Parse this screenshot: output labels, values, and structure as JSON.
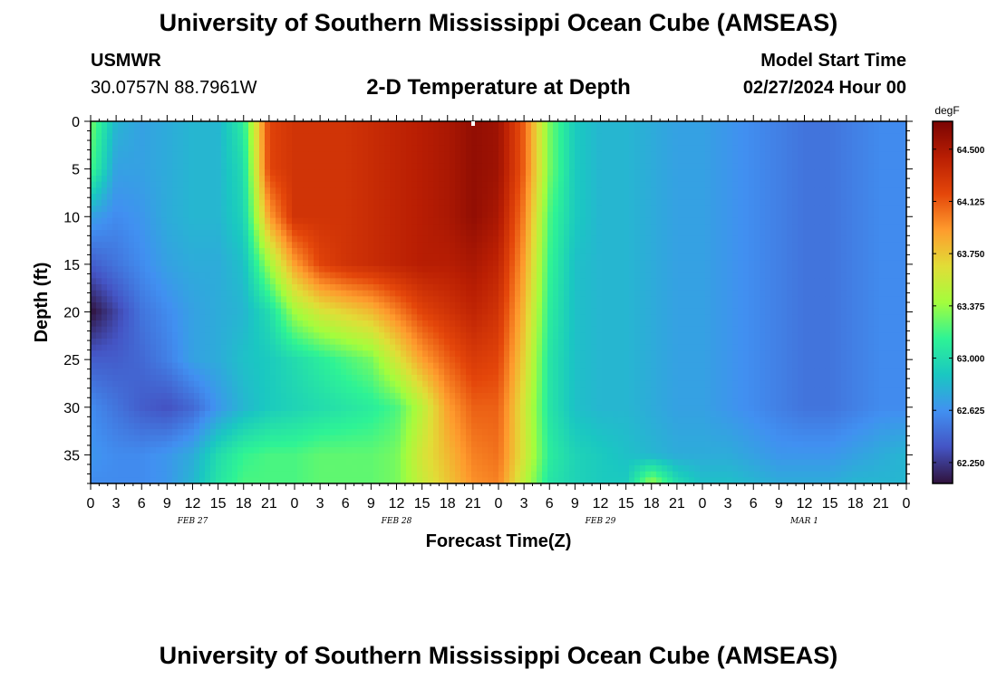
{
  "header": {
    "title": "University of Southern Mississippi Ocean Cube (AMSEAS)",
    "station": "USMWR",
    "coords": "30.0757N  88.7961W",
    "plot_title": "2-D Temperature at Depth",
    "model_label": "Model Start Time",
    "model_time": "02/27/2024 Hour 00"
  },
  "footer": {
    "title": "University of Southern Mississippi Ocean Cube (AMSEAS)"
  },
  "chart_data": {
    "type": "heatmap",
    "title": "2-D Temperature at Depth",
    "xlabel": "Forecast Time(Z)",
    "ylabel": "Depth (ft)",
    "x_range_hours": [
      0,
      96
    ],
    "y_range_ft": [
      0,
      38
    ],
    "x_tick_labels": [
      "0",
      "3",
      "6",
      "9",
      "12",
      "15",
      "18",
      "21",
      "0",
      "3",
      "6",
      "9",
      "12",
      "15",
      "18",
      "21",
      "0",
      "3",
      "6",
      "9",
      "12",
      "15",
      "18",
      "21",
      "0",
      "3",
      "6",
      "9",
      "12",
      "15",
      "18",
      "21",
      "0"
    ],
    "y_ticks": [
      0,
      5,
      10,
      15,
      20,
      25,
      30,
      35
    ],
    "date_labels": [
      {
        "label": "FEB 27",
        "hour": 12
      },
      {
        "label": "FEB 28",
        "hour": 36
      },
      {
        "label": "FEB 29",
        "hour": 60
      },
      {
        "label": "MAR 1",
        "hour": 84
      }
    ],
    "colorbar": {
      "unit": "degF",
      "range": [
        62.1,
        64.7
      ],
      "ticks": [
        "64.500",
        "64.125",
        "63.750",
        "63.375",
        "63.000",
        "62.625",
        "62.250"
      ]
    },
    "depths_ft": [
      0,
      5,
      10,
      15,
      20,
      25,
      30,
      35,
      38
    ],
    "hours": [
      0,
      3,
      6,
      9,
      12,
      15,
      18,
      21,
      24,
      27,
      30,
      33,
      36,
      39,
      42,
      45,
      48,
      51,
      54,
      57,
      60,
      63,
      66,
      69,
      72,
      75,
      78,
      81,
      84,
      87,
      90,
      93,
      96
    ],
    "temperature_degF": [
      [
        63.3,
        62.8,
        62.7,
        62.75,
        62.8,
        62.8,
        63.1,
        64.2,
        64.3,
        64.3,
        64.3,
        64.35,
        64.4,
        64.45,
        64.5,
        64.6,
        64.55,
        64.1,
        63.3,
        62.9,
        62.8,
        62.8,
        62.75,
        62.7,
        62.7,
        62.65,
        62.6,
        62.55,
        62.5,
        62.5,
        62.55,
        62.6,
        62.6
      ],
      [
        63.2,
        62.7,
        62.7,
        62.75,
        62.8,
        62.8,
        63.0,
        64.2,
        64.3,
        64.3,
        64.3,
        64.35,
        64.4,
        64.45,
        64.5,
        64.6,
        64.55,
        64.1,
        63.3,
        62.9,
        62.8,
        62.8,
        62.75,
        62.7,
        62.7,
        62.65,
        62.6,
        62.55,
        62.5,
        62.5,
        62.55,
        62.6,
        62.6
      ],
      [
        62.7,
        62.6,
        62.65,
        62.75,
        62.8,
        62.8,
        62.95,
        63.9,
        64.3,
        64.3,
        64.3,
        64.35,
        64.4,
        64.45,
        64.5,
        64.6,
        64.5,
        64.0,
        63.2,
        62.9,
        62.8,
        62.8,
        62.75,
        62.7,
        62.7,
        62.65,
        62.6,
        62.55,
        62.5,
        62.5,
        62.55,
        62.6,
        62.6
      ],
      [
        62.4,
        62.5,
        62.6,
        62.7,
        62.75,
        62.75,
        62.85,
        63.4,
        63.9,
        64.2,
        64.3,
        64.35,
        64.4,
        64.45,
        64.45,
        64.5,
        64.4,
        63.9,
        63.15,
        62.85,
        62.8,
        62.8,
        62.75,
        62.7,
        62.7,
        62.65,
        62.6,
        62.55,
        62.5,
        62.5,
        62.55,
        62.6,
        62.6
      ],
      [
        62.1,
        62.3,
        62.5,
        62.6,
        62.7,
        62.75,
        62.8,
        63.0,
        63.4,
        63.6,
        63.7,
        63.8,
        64.0,
        64.2,
        64.3,
        64.4,
        64.3,
        63.8,
        63.1,
        62.85,
        62.8,
        62.8,
        62.75,
        62.7,
        62.7,
        62.65,
        62.6,
        62.55,
        62.5,
        62.5,
        62.55,
        62.6,
        62.6
      ],
      [
        62.4,
        62.4,
        62.45,
        62.55,
        62.7,
        62.75,
        62.85,
        62.9,
        63.0,
        63.1,
        63.2,
        63.3,
        63.6,
        63.9,
        64.1,
        64.25,
        64.2,
        63.7,
        63.05,
        62.85,
        62.8,
        62.8,
        62.75,
        62.7,
        62.7,
        62.65,
        62.6,
        62.55,
        62.5,
        62.5,
        62.55,
        62.6,
        62.6
      ],
      [
        62.6,
        62.5,
        62.4,
        62.35,
        62.45,
        62.65,
        62.8,
        62.9,
        62.95,
        63.0,
        63.05,
        63.1,
        63.2,
        63.5,
        63.9,
        64.1,
        64.1,
        63.6,
        63.05,
        62.85,
        62.8,
        62.8,
        62.75,
        62.7,
        62.7,
        62.65,
        62.6,
        62.55,
        62.5,
        62.5,
        62.55,
        62.6,
        62.6
      ],
      [
        62.65,
        62.6,
        62.6,
        62.65,
        62.75,
        63.0,
        63.15,
        63.2,
        63.2,
        63.25,
        63.25,
        63.25,
        63.3,
        63.6,
        63.8,
        64.0,
        64.05,
        63.6,
        63.1,
        62.95,
        62.9,
        62.85,
        62.8,
        62.75,
        62.75,
        62.75,
        62.7,
        62.65,
        62.65,
        62.65,
        62.7,
        62.75,
        62.8
      ],
      [
        62.6,
        62.6,
        62.6,
        62.65,
        62.8,
        63.05,
        63.2,
        63.2,
        63.2,
        63.25,
        63.25,
        63.25,
        63.3,
        63.55,
        63.75,
        63.95,
        64.0,
        63.5,
        63.05,
        62.95,
        62.9,
        62.9,
        63.4,
        63.0,
        62.85,
        62.85,
        62.8,
        62.75,
        62.75,
        62.75,
        62.8,
        62.8,
        62.8
      ]
    ]
  }
}
